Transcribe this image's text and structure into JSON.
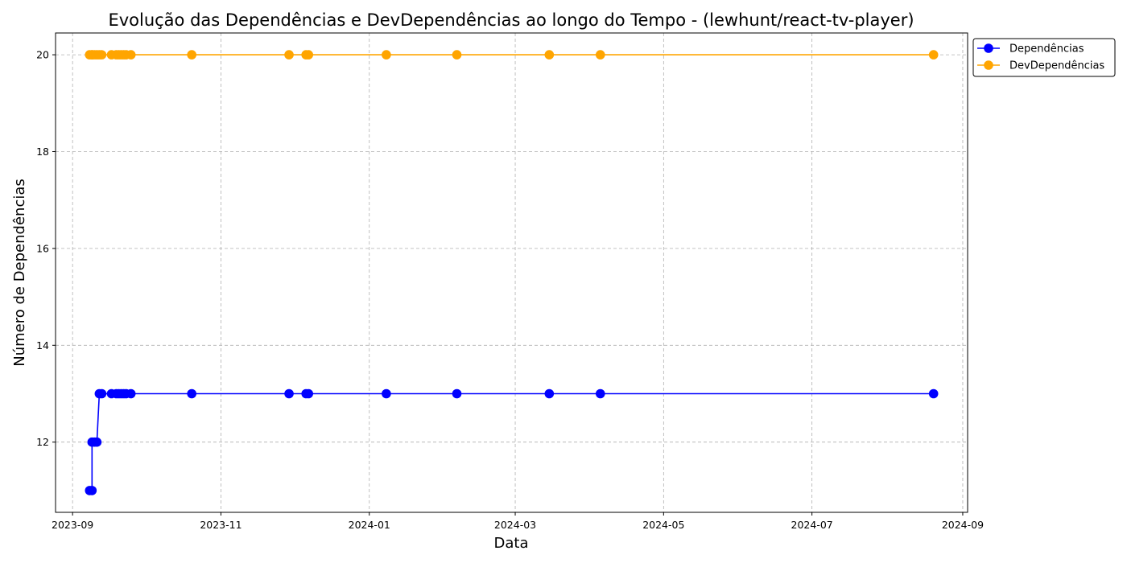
{
  "chart_data": {
    "type": "line",
    "title": "Evolução das Dependências e DevDependências ao longo do Tempo - (lewhunt/react-tv-player)",
    "xlabel": "Data",
    "ylabel": "Número de Dependências",
    "x_axis_type": "date",
    "xlim": [
      "2023-08-25",
      "2024-09-03"
    ],
    "ylim": [
      10.55,
      20.45
    ],
    "x_ticks": [
      "2023-09-01",
      "2023-11-01",
      "2024-01-01",
      "2024-03-01",
      "2024-05-01",
      "2024-07-01",
      "2024-09-01"
    ],
    "x_tick_labels": [
      "2023-09",
      "2023-11",
      "2024-01",
      "2024-03",
      "2024-05",
      "2024-07",
      "2024-09"
    ],
    "y_ticks": [
      12,
      14,
      16,
      18,
      20
    ],
    "y_tick_labels": [
      "12",
      "14",
      "16",
      "18",
      "20"
    ],
    "grid": true,
    "legend_position": "outside-top-right",
    "x": [
      "2023-09-08",
      "2023-09-09",
      "2023-09-09",
      "2023-09-10",
      "2023-09-11",
      "2023-09-12",
      "2023-09-13",
      "2023-09-17",
      "2023-09-19",
      "2023-09-20",
      "2023-09-21",
      "2023-09-22",
      "2023-09-23",
      "2023-09-25",
      "2023-10-20",
      "2023-11-29",
      "2023-12-06",
      "2023-12-07",
      "2024-01-08",
      "2024-02-06",
      "2024-03-15",
      "2024-04-05",
      "2024-08-20"
    ],
    "series": [
      {
        "name": "Dependências",
        "color": "#0000ff",
        "values": [
          11,
          11,
          12,
          12,
          12,
          13,
          13,
          13,
          13,
          13,
          13,
          13,
          13,
          13,
          13,
          13,
          13,
          13,
          13,
          13,
          13,
          13,
          13
        ]
      },
      {
        "name": "DevDependências",
        "color": "#ffa500",
        "values": [
          20,
          20,
          20,
          20,
          20,
          20,
          20,
          20,
          20,
          20,
          20,
          20,
          20,
          20,
          20,
          20,
          20,
          20,
          20,
          20,
          20,
          20,
          20
        ]
      }
    ]
  }
}
